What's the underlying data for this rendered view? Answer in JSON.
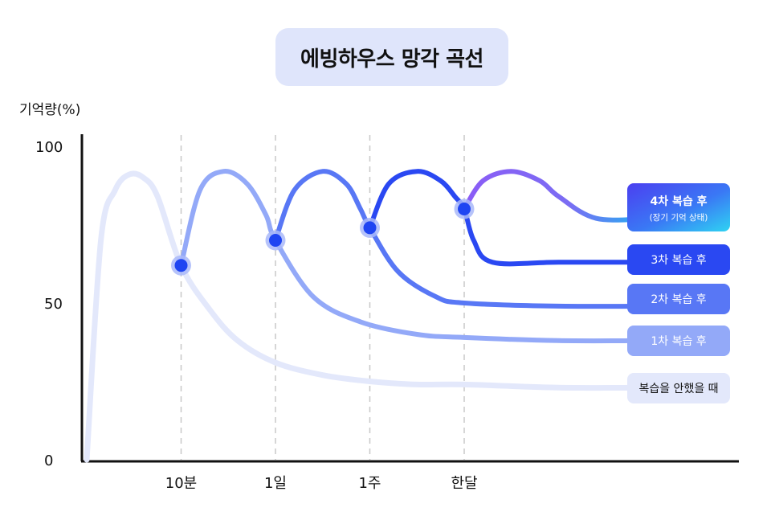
{
  "chart_data": {
    "type": "line",
    "title": "에빙하우스 망각 곡선",
    "ylabel": "기억량(%)",
    "xlabel": "",
    "ylim": [
      0,
      100
    ],
    "y_ticks": [
      "100",
      "50",
      "0"
    ],
    "x_ticks": [
      "10분",
      "1일",
      "1주",
      "한달"
    ],
    "grid": "vertical dashed lines at review points",
    "legend_position": "right (labels at curve ends)",
    "series": [
      {
        "name": "복습을 안했을 때",
        "color": "#e3e8fb",
        "x": [
          0,
          0.15,
          0.3,
          0.45,
          0.6,
          0.75,
          1,
          1.3,
          1.6,
          2,
          2.5,
          3,
          3.5,
          4,
          5,
          6
        ],
        "y": [
          0,
          70,
          86,
          91,
          90,
          84,
          62,
          48,
          38,
          31,
          27,
          25,
          24,
          24,
          23,
          23
        ]
      },
      {
        "name": "1차 복습 후",
        "color": "#93a9f8",
        "x": [
          1,
          1.2,
          1.45,
          1.7,
          1.9,
          2,
          2.4,
          2.9,
          3.5,
          4,
          5,
          6
        ],
        "y": [
          62,
          86,
          92,
          88,
          78,
          70,
          52,
          44,
          40,
          39,
          38,
          38
        ]
      },
      {
        "name": "2차 복습 후",
        "color": "#5877f5",
        "x": [
          2,
          2.2,
          2.5,
          2.75,
          2.9,
          3,
          3.3,
          3.7,
          4,
          5,
          6
        ],
        "y": [
          70,
          86,
          92,
          88,
          80,
          74,
          60,
          52,
          50,
          49,
          49
        ]
      },
      {
        "name": "3차 복습 후",
        "color": "#2a48f2",
        "x": [
          3,
          3.2,
          3.5,
          3.75,
          3.9,
          4,
          4.1,
          4.3,
          5,
          6
        ],
        "y": [
          74,
          88,
          92,
          89,
          84,
          80,
          70,
          63,
          63,
          63
        ]
      },
      {
        "name": "4차 복습 후",
        "sublabel": "(장기 기억 상태)",
        "color": "#8b5cf6",
        "x": [
          4,
          4.2,
          4.5,
          4.8,
          5,
          5.4,
          6
        ],
        "y": [
          80,
          89,
          92,
          89,
          84,
          77,
          77
        ]
      }
    ],
    "review_points": [
      {
        "x": 1,
        "y": 62
      },
      {
        "x": 2,
        "y": 70
      },
      {
        "x": 3,
        "y": 74
      },
      {
        "x": 4,
        "y": 80
      }
    ]
  }
}
